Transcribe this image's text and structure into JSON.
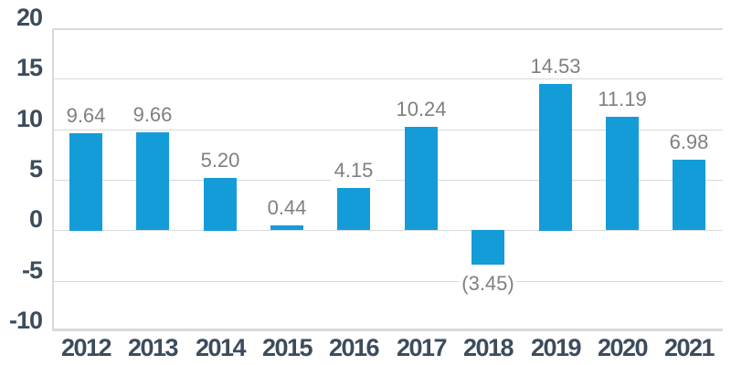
{
  "chart_data": {
    "type": "bar",
    "title": "",
    "xlabel": "",
    "ylabel": "",
    "categories": [
      "2012",
      "2013",
      "2014",
      "2015",
      "2016",
      "2017",
      "2018",
      "2019",
      "2020",
      "2021"
    ],
    "values": [
      9.64,
      9.66,
      5.2,
      0.44,
      4.15,
      10.24,
      -3.45,
      14.53,
      11.19,
      6.98
    ],
    "labels": [
      "9.64",
      "9.66",
      "5.20",
      "0.44",
      "4.15",
      "10.24",
      "(3.45)",
      "14.53",
      "11.19",
      "6.98"
    ],
    "ylim": [
      -10,
      20
    ],
    "ytick_step": 5,
    "yticks": [
      20,
      15,
      10,
      5,
      0,
      -5,
      -10
    ],
    "ytick_labels": [
      "20",
      "15",
      "10",
      "5",
      "0",
      "-5",
      "-10"
    ],
    "grid": true,
    "legend_position": "none",
    "colors": {
      "bar": "#149CD8",
      "axis_label": "#3C4C5C",
      "data_label": "#808080",
      "gridline": "#D9D9D9",
      "axis_line": "#D2D2D2",
      "background": "#FFFFFF"
    }
  }
}
